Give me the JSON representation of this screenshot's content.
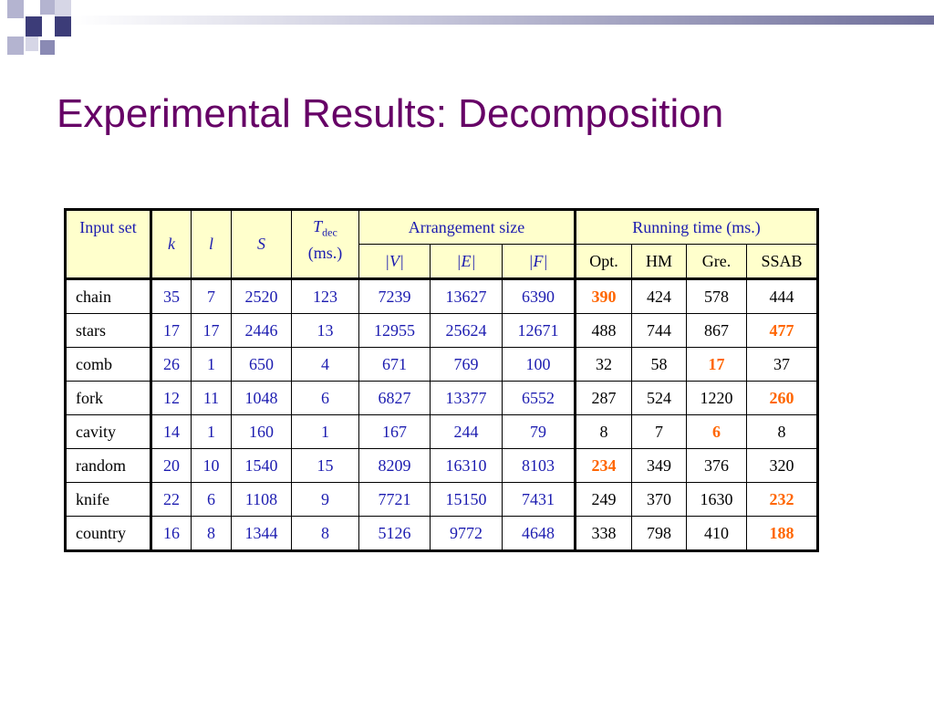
{
  "title": "Experimental Results: Decomposition",
  "colors": {
    "title": "#660066",
    "header_bg": "#ffffcc",
    "value_text": "#1c1cb0",
    "best_text": "#ff6600"
  },
  "table": {
    "header": {
      "input_set": "Input set",
      "k": "k",
      "l": "l",
      "s": "S",
      "t": "T",
      "t_sub": "dec",
      "t_unit": "(ms.)",
      "arrangement": "Arrangement size",
      "v": "|V|",
      "e": "|E|",
      "f": "|F|",
      "running": "Running time (ms.)",
      "opt": "Opt.",
      "hm": "HM",
      "gre": "Gre.",
      "ssab": "SSAB"
    },
    "rows": [
      {
        "name": "chain",
        "k": "35",
        "l": "7",
        "s": "2520",
        "t": "123",
        "v": "7239",
        "e": "13627",
        "f": "6390",
        "opt": "390",
        "hm": "424",
        "gre": "578",
        "ssab": "444"
      },
      {
        "name": "stars",
        "k": "17",
        "l": "17",
        "s": "2446",
        "t": "13",
        "v": "12955",
        "e": "25624",
        "f": "12671",
        "opt": "488",
        "hm": "744",
        "gre": "867",
        "ssab": "477"
      },
      {
        "name": "comb",
        "k": "26",
        "l": "1",
        "s": "650",
        "t": "4",
        "v": "671",
        "e": "769",
        "f": "100",
        "opt": "32",
        "hm": "58",
        "gre": "17",
        "ssab": "37"
      },
      {
        "name": "fork",
        "k": "12",
        "l": "11",
        "s": "1048",
        "t": "6",
        "v": "6827",
        "e": "13377",
        "f": "6552",
        "opt": "287",
        "hm": "524",
        "gre": "1220",
        "ssab": "260"
      },
      {
        "name": "cavity",
        "k": "14",
        "l": "1",
        "s": "160",
        "t": "1",
        "v": "167",
        "e": "244",
        "f": "79",
        "opt": "8",
        "hm": "7",
        "gre": "6",
        "ssab": "8"
      },
      {
        "name": "random",
        "k": "20",
        "l": "10",
        "s": "1540",
        "t": "15",
        "v": "8209",
        "e": "16310",
        "f": "8103",
        "opt": "234",
        "hm": "349",
        "gre": "376",
        "ssab": "320"
      },
      {
        "name": "knife",
        "k": "22",
        "l": "6",
        "s": "1108",
        "t": "9",
        "v": "7721",
        "e": "15150",
        "f": "7431",
        "opt": "249",
        "hm": "370",
        "gre": "1630",
        "ssab": "232"
      },
      {
        "name": "country",
        "k": "16",
        "l": "8",
        "s": "1344",
        "t": "8",
        "v": "5126",
        "e": "9772",
        "f": "4648",
        "opt": "338",
        "hm": "798",
        "gre": "410",
        "ssab": "188"
      }
    ],
    "best": [
      "opt",
      "ssab",
      "gre",
      "ssab",
      "gre",
      "opt",
      "ssab",
      "ssab"
    ]
  }
}
